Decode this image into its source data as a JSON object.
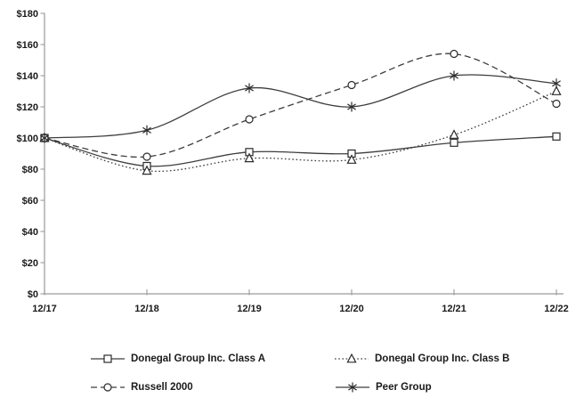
{
  "chart_data": {
    "type": "line",
    "title": "",
    "xlabel": "",
    "ylabel": "",
    "categories": [
      "12/17",
      "12/18",
      "12/19",
      "12/20",
      "12/21",
      "12/22"
    ],
    "series": [
      {
        "name": "Donegal Group Inc. Class A",
        "marker": "square",
        "line_style": "solid",
        "values": [
          100,
          82,
          91,
          90,
          97,
          101
        ]
      },
      {
        "name": "Donegal Group Inc. Class B",
        "marker": "triangle",
        "line_style": "dotted",
        "values": [
          100,
          79,
          87,
          86,
          102,
          130
        ]
      },
      {
        "name": "Russell 2000",
        "marker": "circle",
        "line_style": "dashed",
        "values": [
          100,
          88,
          112,
          134,
          154,
          122
        ]
      },
      {
        "name": "Peer Group",
        "marker": "asterisk",
        "line_style": "solid",
        "values": [
          100,
          105,
          132,
          120,
          140,
          135
        ]
      }
    ],
    "ylim": [
      0,
      180
    ],
    "ytick_step": 20,
    "ytick_prefix": "$",
    "grid": false,
    "legend_position": "bottom",
    "curve": "smooth"
  },
  "colors": {
    "background": "#ffffff",
    "axis": "#9a9a9a",
    "line": "#3d3d3d",
    "marker_stroke": "#2b2b2b",
    "text": "#1a1a1a"
  }
}
